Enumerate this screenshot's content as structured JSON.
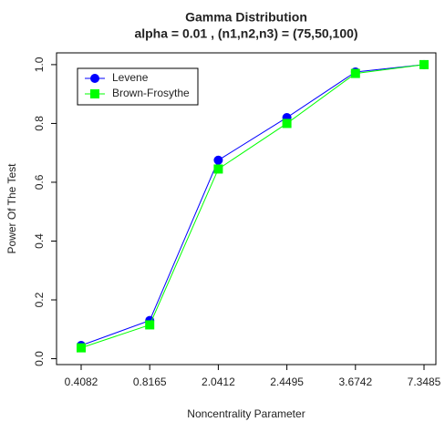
{
  "chart_data": {
    "type": "line",
    "title": "Gamma Distribution",
    "subtitle": "alpha = 0.01 , (n1,n2,n3) = (75,50,100)",
    "x_label": "Noncentrality Parameter",
    "y_label": "Power Of The Test",
    "categories": [
      "0.4082",
      "0.8165",
      "2.0412",
      "2.4495",
      "3.6742",
      "7.3485"
    ],
    "series": [
      {
        "name": "Levene",
        "color": "#0000ff",
        "marker": "circle",
        "values": [
          0.045,
          0.13,
          0.675,
          0.82,
          0.975,
          1.0
        ]
      },
      {
        "name": "Brown-Frosythe",
        "color": "#00ff00",
        "marker": "square",
        "values": [
          0.037,
          0.115,
          0.645,
          0.8,
          0.97,
          1.0
        ]
      }
    ],
    "ylim": [
      -0.02,
      1.04
    ],
    "yticks": [
      {
        "value": 0,
        "label": "0.0"
      },
      0.2,
      0.4,
      0.6,
      0.8,
      {
        "value": 1,
        "label": "1.0"
      }
    ],
    "legend": "top-left",
    "grid": false
  }
}
